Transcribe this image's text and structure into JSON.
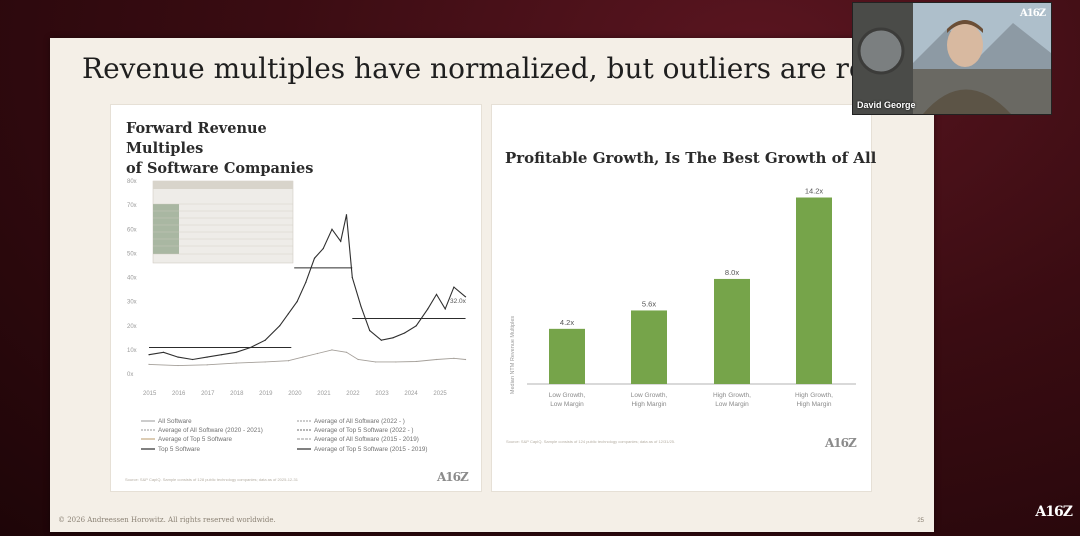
{
  "slide": {
    "title": "Revenue multiples have normalized, but outliers are rewar",
    "copyright": "© 2026 Andreessen Horowitz. All rights reserved worldwide.",
    "page_number": "25"
  },
  "webcam": {
    "name": "David George",
    "logo": "A16Z"
  },
  "corner_logo": "A16Z",
  "left_card": {
    "title_line1": "Forward Revenue Multiples",
    "title_line2": "of Software Companies",
    "logo": "A16Z",
    "callout": "32.0x",
    "legend": [
      "All Software",
      "Average of All Software (2020 - 2021)",
      "Average of Top 5 Software",
      "Top 5 Software",
      "Average of All Software (2022 - )",
      "Average of Top 5 Software (2022 - )",
      "Average of All Software (2015 - 2019)",
      "Average of Top 5 Software (2015 - 2019)"
    ],
    "source": "Source: S&P CapIQ. Sample consists of 128 public technology companies; data as of 2025-12-31"
  },
  "right_card": {
    "title": "Profitable Growth, Is The Best Growth of All",
    "logo": "A16Z",
    "source": "Source: S&P CapIQ. Sample consists of 124 public technology companies; data as of 12/31/25."
  },
  "chart_data": [
    {
      "type": "line",
      "title": "Forward Revenue Multiples of Software Companies",
      "y_ticks": [
        "80x",
        "70x",
        "60x",
        "50x",
        "40x",
        "30x",
        "20x",
        "10x",
        "0x"
      ],
      "x_ticks": [
        "2015",
        "2016",
        "2017",
        "2018",
        "2019",
        "2020",
        "2021",
        "2022",
        "2023",
        "2024",
        "2025"
      ],
      "ylim": [
        0,
        80
      ],
      "series": [
        {
          "name": "Top 5 Software",
          "x": [
            2015.0,
            2015.5,
            2016.0,
            2016.5,
            2017.0,
            2017.5,
            2018.0,
            2018.5,
            2019.0,
            2019.5,
            2019.8,
            2020.1,
            2020.4,
            2020.7,
            2021.0,
            2021.3,
            2021.6,
            2021.8,
            2022.0,
            2022.3,
            2022.6,
            2023.0,
            2023.4,
            2023.8,
            2024.2,
            2024.6,
            2024.9,
            2025.2,
            2025.5,
            2025.9
          ],
          "values": [
            8,
            9,
            7,
            6,
            7,
            8,
            9,
            11,
            14,
            20,
            25,
            30,
            38,
            48,
            52,
            60,
            55,
            66,
            40,
            28,
            18,
            14,
            15,
            17,
            20,
            27,
            33,
            27,
            36,
            32
          ]
        },
        {
          "name": "All Software",
          "x": [
            2015.0,
            2016.0,
            2017.0,
            2018.0,
            2019.0,
            2019.8,
            2020.3,
            2020.8,
            2021.3,
            2021.8,
            2022.2,
            2022.8,
            2023.5,
            2024.2,
            2024.9,
            2025.5,
            2025.9
          ],
          "values": [
            4,
            3.5,
            3.8,
            4.5,
            5,
            5.5,
            7,
            8.5,
            10,
            9,
            6,
            5,
            5,
            5.2,
            6,
            6.5,
            6
          ]
        }
      ],
      "reference_lines": [
        {
          "name": "Average of Top 5 Software (2015 - 2019)",
          "value": 11,
          "x_range": [
            2015,
            2019.9
          ]
        },
        {
          "name": "Average of Top 5 Software (2020 - 2021)",
          "value": 44,
          "x_range": [
            2020,
            2022
          ]
        },
        {
          "name": "Average of Top 5 Software (2022 - )",
          "value": 23,
          "x_range": [
            2022,
            2025.9
          ]
        }
      ]
    },
    {
      "type": "bar",
      "title": "Profitable Growth, Is The Best Growth of All",
      "ylabel": "Median NTM Revenue Multiples",
      "categories": [
        "Low Growth,\nLow Margin",
        "Low Growth,\nHigh Margin",
        "High Growth,\nLow Margin",
        "High Growth,\nHigh Margin"
      ],
      "values": [
        4.2,
        5.6,
        8.0,
        14.2
      ],
      "value_labels": [
        "4.2x",
        "5.6x",
        "8.0x",
        "14.2x"
      ],
      "ylim": [
        0,
        15
      ],
      "color": "#76a44a"
    }
  ]
}
